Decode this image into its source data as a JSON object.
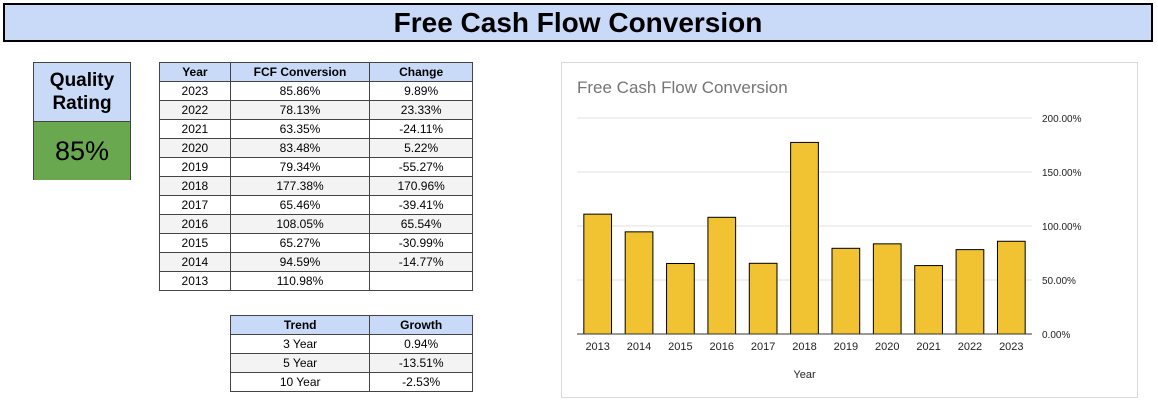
{
  "banner": {
    "title": "Free Cash Flow Conversion"
  },
  "quality": {
    "label": "Quality Rating",
    "value": "85%"
  },
  "fcf_table": {
    "headers": [
      "Year",
      "FCF Conversion",
      "Change"
    ],
    "rows": [
      [
        "2023",
        "85.86%",
        "9.89%"
      ],
      [
        "2022",
        "78.13%",
        "23.33%"
      ],
      [
        "2021",
        "63.35%",
        "-24.11%"
      ],
      [
        "2020",
        "83.48%",
        "5.22%"
      ],
      [
        "2019",
        "79.34%",
        "-55.27%"
      ],
      [
        "2018",
        "177.38%",
        "170.96%"
      ],
      [
        "2017",
        "65.46%",
        "-39.41%"
      ],
      [
        "2016",
        "108.05%",
        "65.54%"
      ],
      [
        "2015",
        "65.27%",
        "-30.99%"
      ],
      [
        "2014",
        "94.59%",
        "-14.77%"
      ],
      [
        "2013",
        "110.98%",
        ""
      ]
    ]
  },
  "trend_table": {
    "headers": [
      "Trend",
      "Growth"
    ],
    "rows": [
      [
        "3 Year",
        "0.94%"
      ],
      [
        "5 Year",
        "-13.51%"
      ],
      [
        "10 Year",
        "-2.53%"
      ]
    ]
  },
  "chart_data": {
    "type": "bar",
    "title": "Free Cash Flow Conversion",
    "xlabel": "Year",
    "ylabel": "",
    "categories": [
      "2013",
      "2014",
      "2015",
      "2016",
      "2017",
      "2018",
      "2019",
      "2020",
      "2021",
      "2022",
      "2023"
    ],
    "values": [
      110.98,
      94.59,
      65.27,
      108.05,
      65.46,
      177.38,
      79.34,
      83.48,
      63.35,
      78.13,
      85.86
    ],
    "yticks": [
      0,
      50,
      100,
      150,
      200
    ],
    "ytick_labels": [
      "0.00%",
      "50.00%",
      "100.00%",
      "150.00%",
      "200.00%"
    ],
    "ylim": [
      0,
      200
    ],
    "y_axis_side": "right",
    "grid": true,
    "legend": "none",
    "colors": {
      "bar": "#f1c232",
      "bar_border": "#000000",
      "grid": "#e0e0e0"
    }
  }
}
